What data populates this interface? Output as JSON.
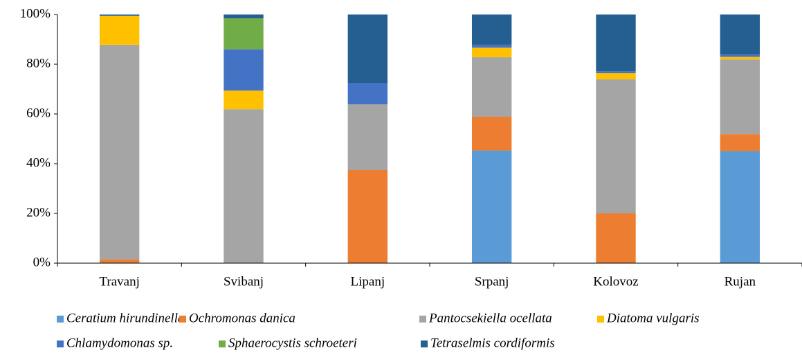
{
  "chart_data": {
    "type": "stacked_bar",
    "categories": [
      "Travanj",
      "Svibanj",
      "Lipanj",
      "Srpanj",
      "Kolovoz",
      "Rujan"
    ],
    "series": [
      {
        "name": "Ceratium hirundinella",
        "color": "#5b9bd5",
        "values": [
          0,
          0,
          0,
          45.3,
          0,
          45
        ]
      },
      {
        "name": "Ochromonas danica",
        "color": "#ed7d31",
        "values": [
          1.5,
          0,
          37.5,
          13.6,
          20,
          6.9
        ]
      },
      {
        "name": "Pantocsekiella ocellata",
        "color": "#a5a5a5",
        "values": [
          86.3,
          61.9,
          26.4,
          23.9,
          53.9,
          30
        ]
      },
      {
        "name": "Diatoma vulgaris",
        "color": "#ffc000",
        "values": [
          11.7,
          7.5,
          0,
          3.9,
          2.5,
          1.1
        ]
      },
      {
        "name": "Chlamydomonas sp.",
        "color": "#4472c4",
        "values": [
          0,
          16.6,
          8.6,
          1.1,
          0.8,
          1
        ]
      },
      {
        "name": "Sphaerocystis schroeteri",
        "color": "#70ad47",
        "values": [
          0,
          12.5,
          0,
          0,
          0,
          0
        ]
      },
      {
        "name": "Tetraselmis cordiformis",
        "color": "#255e91",
        "values": [
          0.5,
          1.5,
          27.5,
          12.2,
          22.8,
          16
        ]
      }
    ],
    "ylim": [
      0,
      100
    ],
    "yticks": [
      {
        "value": 0,
        "label": "0%"
      },
      {
        "value": 20,
        "label": "20%"
      },
      {
        "value": 40,
        "label": "40%"
      },
      {
        "value": 60,
        "label": "60%"
      },
      {
        "value": 80,
        "label": "80%"
      },
      {
        "value": 100,
        "label": "100%"
      }
    ],
    "legend": "bottom"
  }
}
